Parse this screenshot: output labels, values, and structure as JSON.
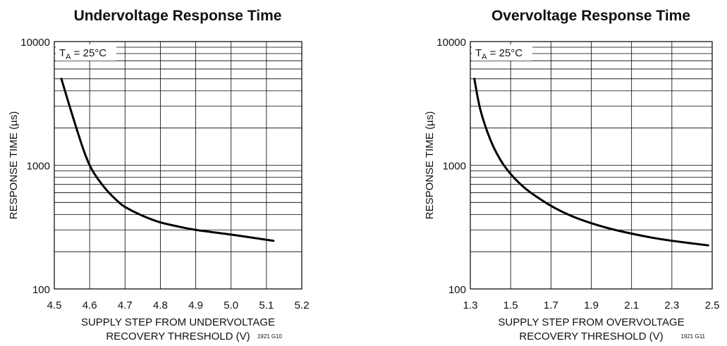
{
  "chart_data": [
    {
      "type": "line",
      "title": "Undervoltage Response Time",
      "xlabel_line1": "SUPPLY STEP FROM UNDERVOLTAGE",
      "xlabel_line2": "RECOVERY THRESHOLD (V)",
      "ylabel": "RESPONSE TIME (µs)",
      "annotation": "TA = 25°C",
      "annotation_main": "T",
      "annotation_sub": "A",
      "annotation_rest": " = 25°C",
      "figure_id": "1921 G10",
      "xlim": [
        4.5,
        5.2
      ],
      "ylim": [
        100,
        10000
      ],
      "y_scale": "log",
      "grid": true,
      "x_ticks": [
        "4.5",
        "4.6",
        "4.7",
        "4.8",
        "4.9",
        "5.0",
        "5.1",
        "5.2"
      ],
      "x_tick_values": [
        4.5,
        4.6,
        4.7,
        4.8,
        4.9,
        5.0,
        5.1,
        5.2
      ],
      "y_ticks": [
        "100",
        "1000",
        "10000"
      ],
      "y_tick_values": [
        100,
        1000,
        10000
      ],
      "series": [
        {
          "x": [
            4.52,
            4.55,
            4.58,
            4.6,
            4.62,
            4.65,
            4.68,
            4.7,
            4.75,
            4.8,
            4.85,
            4.9,
            5.0,
            5.12
          ],
          "y": [
            5000,
            2600,
            1400,
            1000,
            800,
            620,
            510,
            460,
            390,
            345,
            320,
            300,
            275,
            245
          ]
        }
      ]
    },
    {
      "type": "line",
      "title": "Overvoltage Response Time",
      "xlabel_line1": "SUPPLY STEP FROM OVERVOLTAGE",
      "xlabel_line2": "RECOVERY THRESHOLD (V)",
      "ylabel": "RESPONSE TIME (µs)",
      "annotation": "TA = 25°C",
      "annotation_main": "T",
      "annotation_sub": "A",
      "annotation_rest": " = 25°C",
      "figure_id": "1921 G11",
      "xlim": [
        1.3,
        2.5
      ],
      "ylim": [
        100,
        10000
      ],
      "y_scale": "log",
      "grid": true,
      "x_ticks": [
        "1.3",
        "1.5",
        "1.7",
        "1.9",
        "2.1",
        "2.3",
        "2.5"
      ],
      "x_tick_values": [
        1.3,
        1.5,
        1.7,
        1.9,
        2.1,
        2.3,
        2.5
      ],
      "y_ticks": [
        "100",
        "1000",
        "10000"
      ],
      "y_tick_values": [
        100,
        1000,
        10000
      ],
      "series": [
        {
          "x": [
            1.32,
            1.35,
            1.4,
            1.45,
            1.5,
            1.55,
            1.6,
            1.7,
            1.8,
            1.9,
            2.0,
            2.1,
            2.2,
            2.3,
            2.48
          ],
          "y": [
            5000,
            2800,
            1600,
            1100,
            850,
            700,
            600,
            470,
            390,
            340,
            305,
            280,
            260,
            245,
            225
          ]
        }
      ]
    }
  ]
}
